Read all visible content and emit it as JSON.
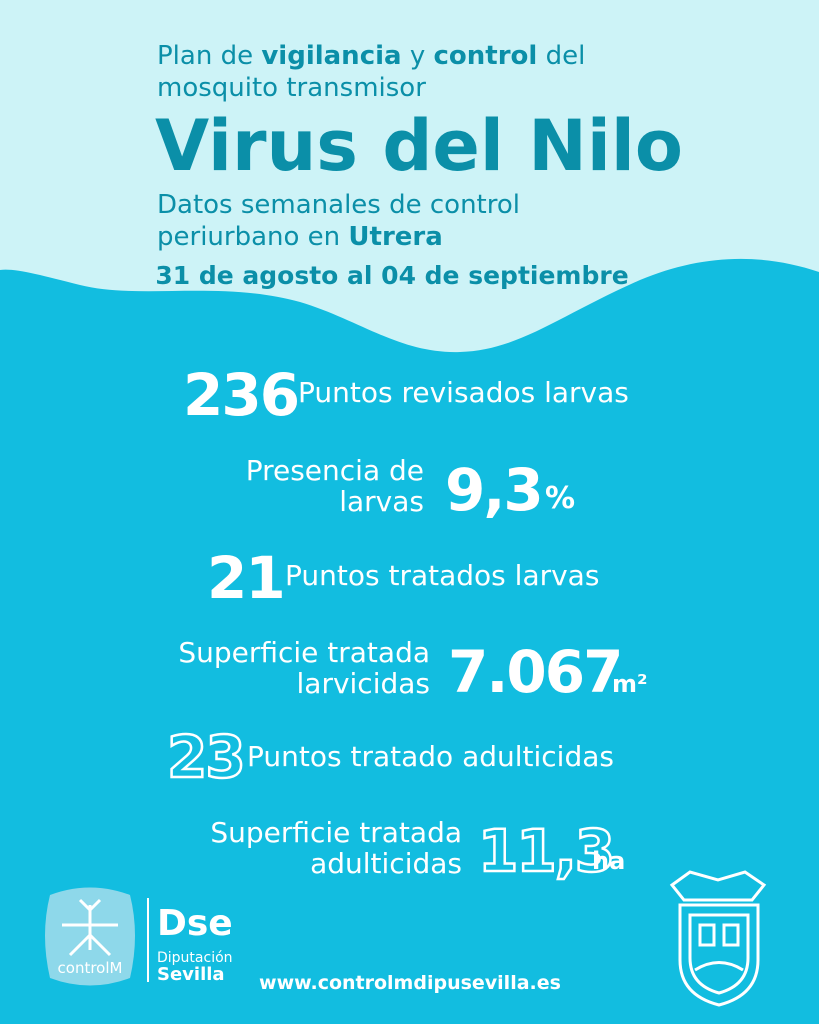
{
  "header": {
    "intro": [
      "Plan de ",
      "vigilancia",
      " y ",
      "control",
      " del"
    ],
    "intro_line2": "mosquito transmisor",
    "title": "Virus del Nilo",
    "subtitle_line1": "Datos semanales de control",
    "subtitle_line2": [
      "periurbano en ",
      "Utrera"
    ],
    "date": "31 de agosto al 04 de septiembre"
  },
  "stats": [
    {
      "value": "236",
      "label": [
        "Puntos revisados larvas"
      ]
    },
    {
      "value": "9,3",
      "unit": "%",
      "label": [
        "Presencia de",
        "larvas"
      ]
    },
    {
      "value": "21",
      "label": [
        "Puntos tratados larvas"
      ]
    },
    {
      "value": "7.067",
      "unit": "m²",
      "label": [
        "Superficie tratada",
        "larvicidas"
      ]
    },
    {
      "value": "23",
      "label": [
        "Puntos tratado adulticidas"
      ]
    },
    {
      "value": "11,3",
      "unit": "ha",
      "label": [
        "Superficie tratada",
        "adulticidas"
      ]
    }
  ],
  "footer": {
    "logo1": "controlM",
    "logo2_top": "Diputación",
    "logo2_bottom": "Sevilla",
    "url": "www.controlmdipusevilla.es"
  }
}
